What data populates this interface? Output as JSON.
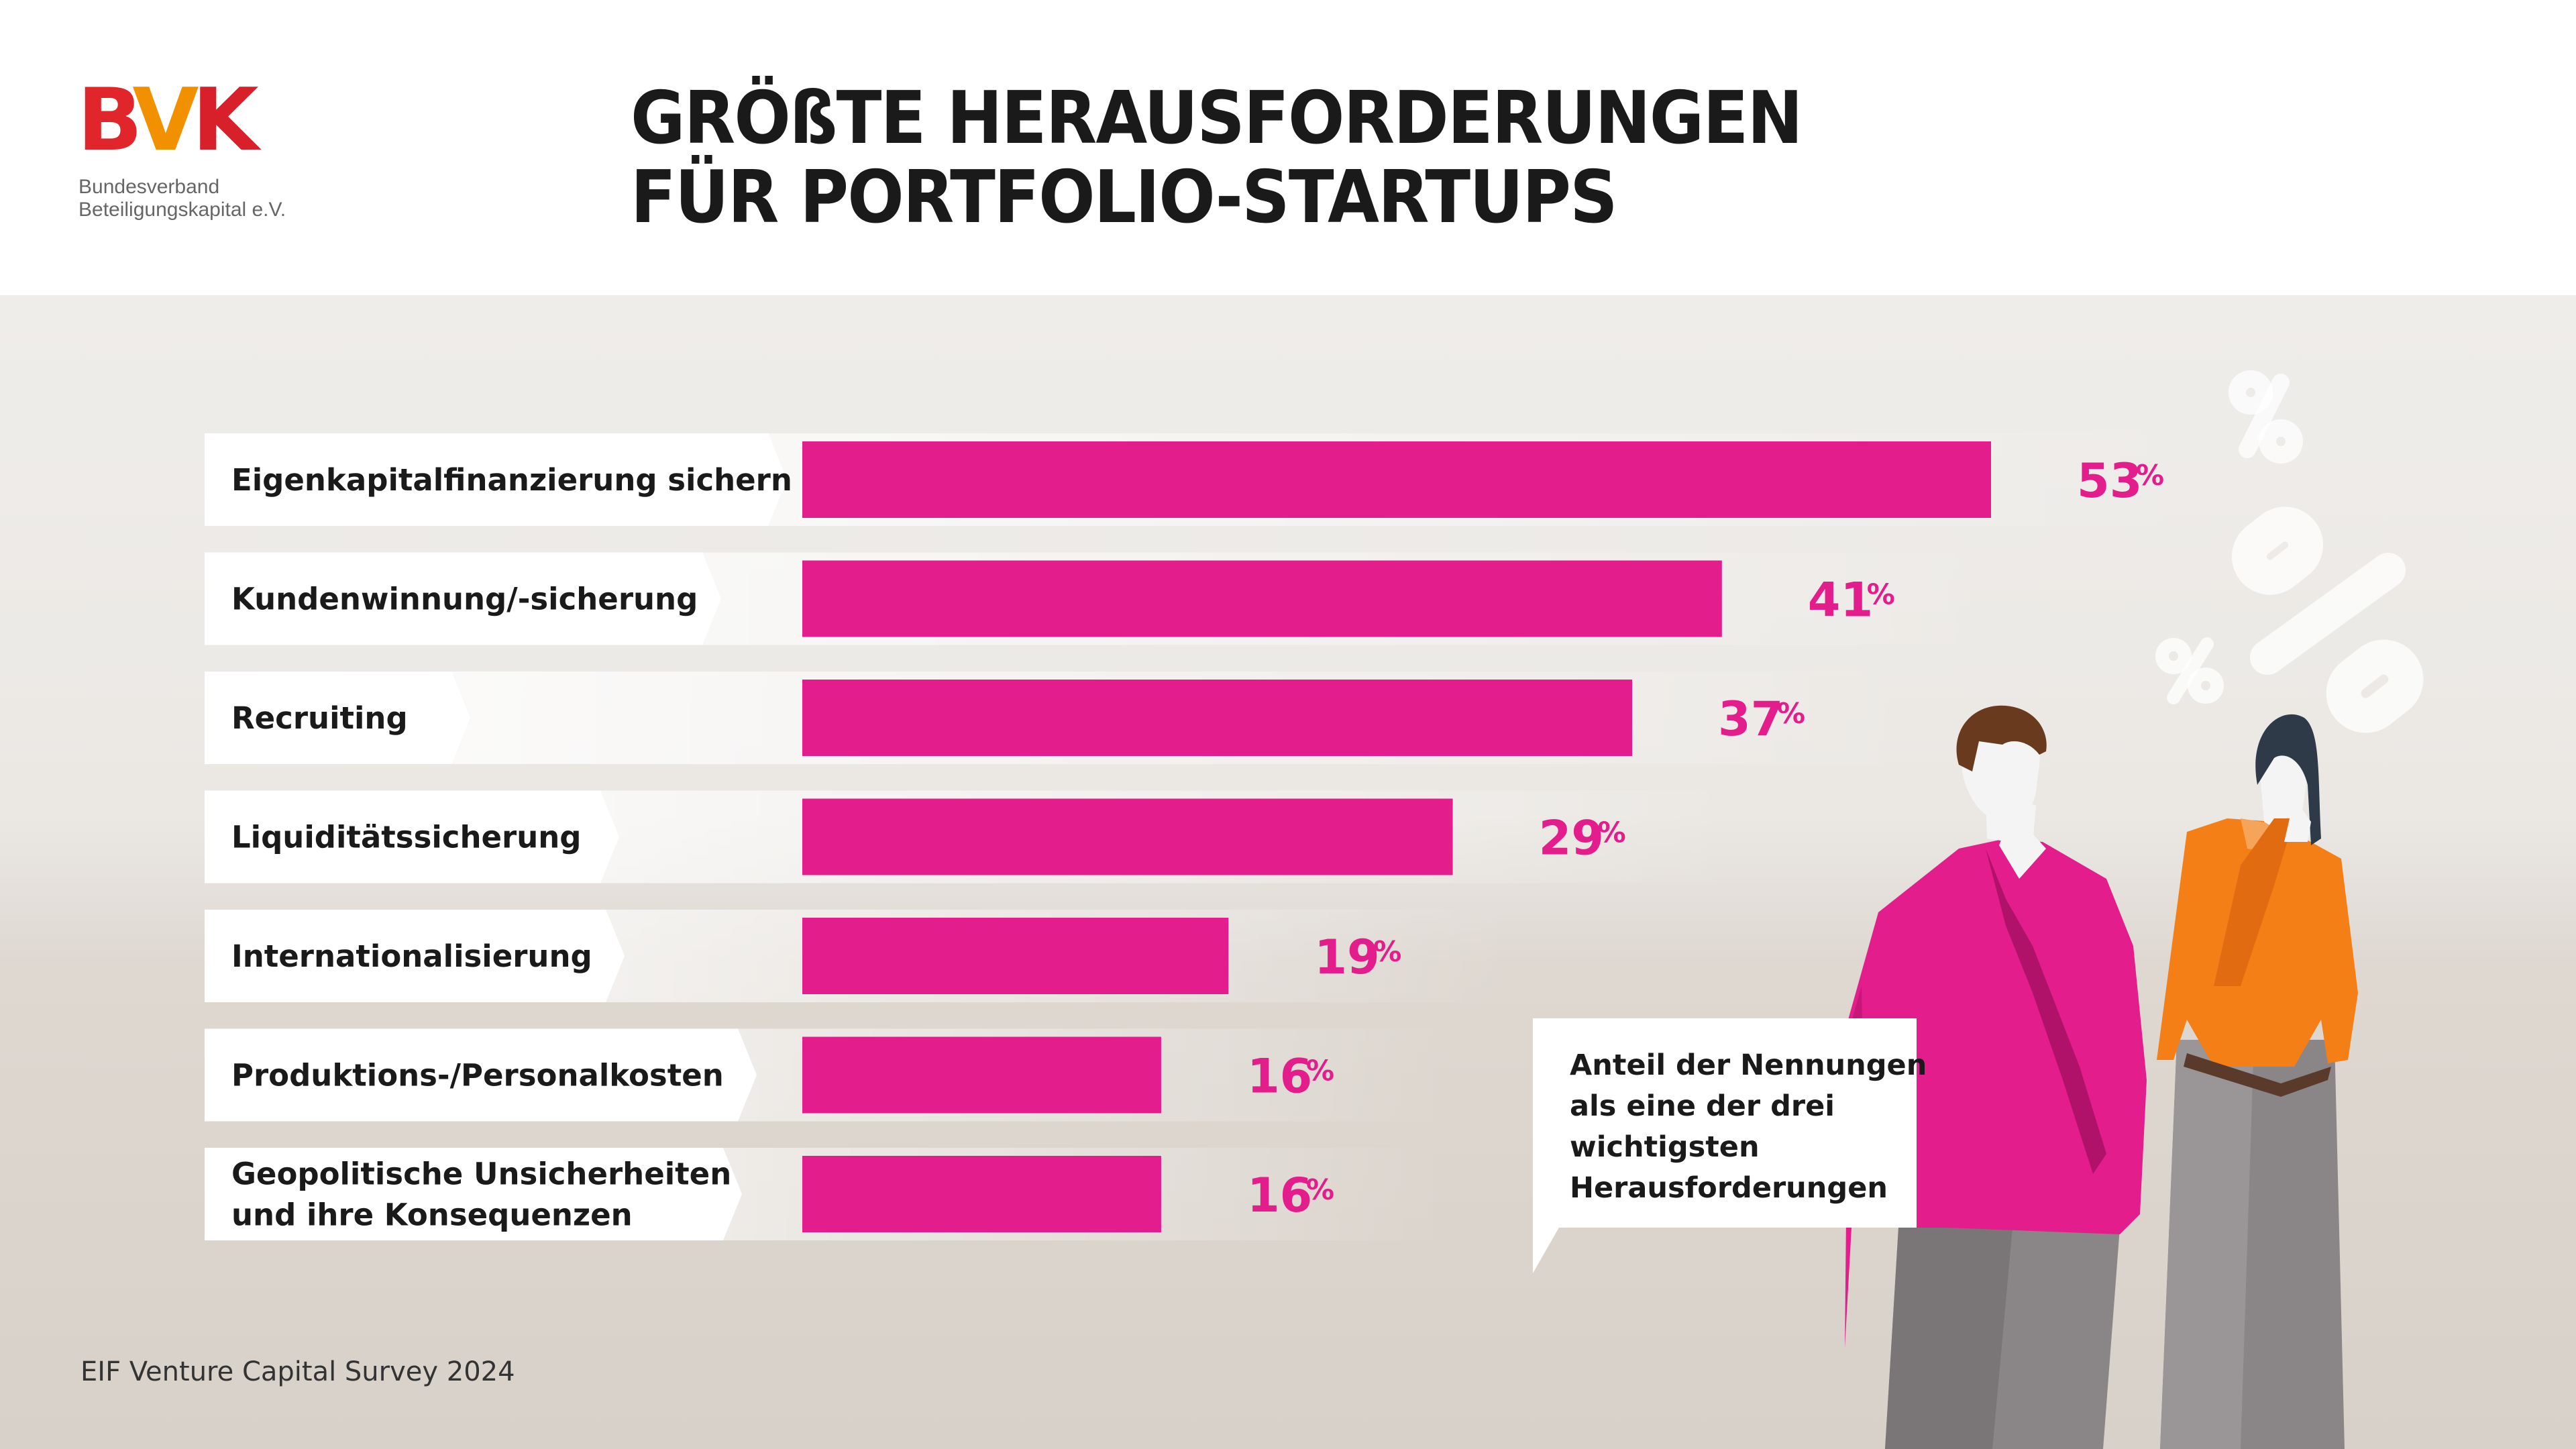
{
  "brand": {
    "logo_text": "BVK",
    "org_line1": "Bundesverband",
    "org_line2": "Beteiligungskapital e.V."
  },
  "title": {
    "line1": "GRÖßTE HERAUSFORDERUNGEN",
    "line2": "FÜR PORTFOLIO-STARTUPS"
  },
  "chart_data": {
    "type": "bar",
    "orientation": "horizontal",
    "categories": [
      [
        "Eigenkapitalfinanzierung sichern"
      ],
      [
        "Kundenwinnung/-sicherung"
      ],
      [
        "Recruiting"
      ],
      [
        "Liquiditätssicherung"
      ],
      [
        "Internationalisierung"
      ],
      [
        "Produktions-/Personalkosten"
      ],
      [
        "Geopolitische Unsicherheiten",
        "und ihre Konsequenzen"
      ]
    ],
    "values": [
      53,
      41,
      37,
      29,
      19,
      16,
      16
    ],
    "value_labels": [
      "53",
      "41",
      "37",
      "29",
      "19",
      "16",
      "16"
    ],
    "unit": "%",
    "xlim": [
      0,
      53
    ],
    "grid": false,
    "colors": {
      "bar": "#e31e8c",
      "value_text": "#e31e8c",
      "label_text": "#1a1a1a"
    }
  },
  "note": {
    "lines": [
      "Anteil der Nennungen",
      "als eine der drei",
      "wichtigsten",
      "Herausforderungen"
    ]
  },
  "source": "EIF Venture Capital Survey 2024",
  "colors": {
    "magenta": "#e31e8c",
    "orange": "#f57f17",
    "panel": "#ebe8e4",
    "text": "#1a1a1a"
  }
}
